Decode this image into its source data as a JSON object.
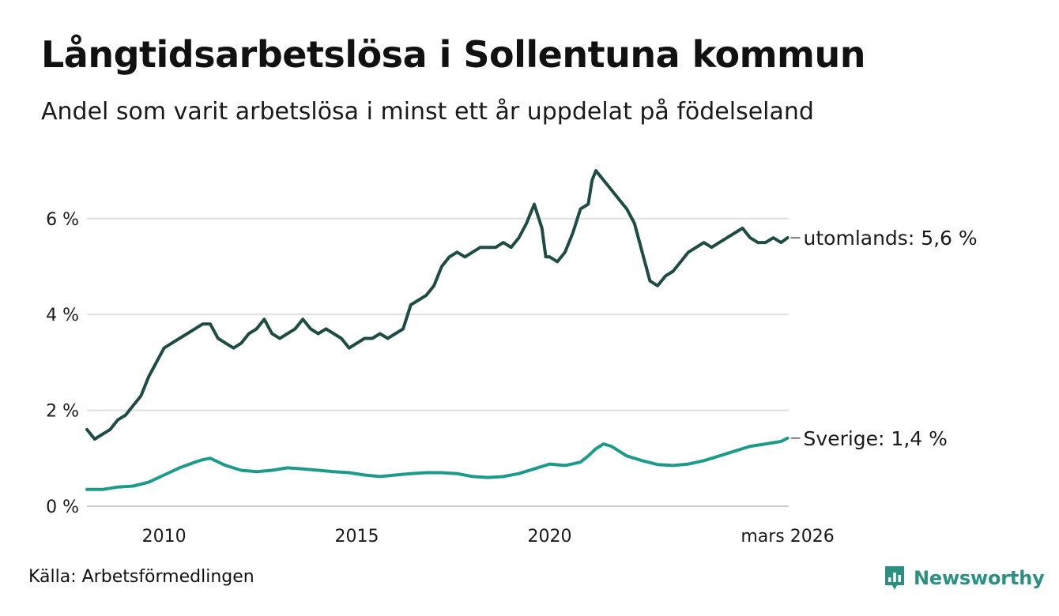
{
  "title": "Långtidsarbetslösa i Sollentuna kommun",
  "subtitle": "Andel som varit arbetslösa i minst ett år uppdelat på födelseland",
  "source": "Källa: Arbetsförmedlingen",
  "brand": {
    "name": "Newsworthy",
    "icon": "newsworthy-logo-icon",
    "color": "#2a9180"
  },
  "chart_data": {
    "type": "line",
    "title": "Långtidsarbetslösa i Sollentuna kommun",
    "xlabel": "",
    "ylabel": "",
    "x_range": [
      2008.0,
      2026.2
    ],
    "ylim": [
      0,
      7.1
    ],
    "y_ticks": [
      {
        "value": 0,
        "label": "0 %"
      },
      {
        "value": 2,
        "label": "2 %"
      },
      {
        "value": 4,
        "label": "4 %"
      },
      {
        "value": 6,
        "label": "6 %"
      }
    ],
    "x_ticks": [
      {
        "value": 2010,
        "label": "2010"
      },
      {
        "value": 2015,
        "label": "2015"
      },
      {
        "value": 2020,
        "label": "2020"
      },
      {
        "value": 2026.17,
        "label": "mars 2026"
      }
    ],
    "grid": true,
    "series": [
      {
        "name": "utomlands",
        "end_label": "utomlands: 5,6 %",
        "color": "#1f4b45",
        "x": [
          2008.0,
          2008.2,
          2008.4,
          2008.6,
          2008.8,
          2009.0,
          2009.2,
          2009.4,
          2009.6,
          2009.8,
          2010.0,
          2010.2,
          2010.4,
          2010.6,
          2010.8,
          2011.0,
          2011.2,
          2011.4,
          2011.6,
          2011.8,
          2012.0,
          2012.2,
          2012.4,
          2012.6,
          2012.8,
          2013.0,
          2013.2,
          2013.4,
          2013.6,
          2013.8,
          2014.0,
          2014.2,
          2014.4,
          2014.6,
          2014.8,
          2015.0,
          2015.2,
          2015.4,
          2015.6,
          2015.8,
          2016.0,
          2016.2,
          2016.4,
          2016.6,
          2016.8,
          2017.0,
          2017.2,
          2017.4,
          2017.6,
          2017.8,
          2018.0,
          2018.2,
          2018.4,
          2018.6,
          2018.8,
          2019.0,
          2019.2,
          2019.4,
          2019.6,
          2019.8,
          2019.9,
          2020.0,
          2020.2,
          2020.4,
          2020.6,
          2020.8,
          2021.0,
          2021.1,
          2021.2,
          2021.4,
          2021.6,
          2021.8,
          2022.0,
          2022.2,
          2022.4,
          2022.6,
          2022.8,
          2023.0,
          2023.2,
          2023.4,
          2023.6,
          2023.8,
          2024.0,
          2024.2,
          2024.4,
          2024.6,
          2024.8,
          2025.0,
          2025.2,
          2025.4,
          2025.6,
          2025.8,
          2026.0,
          2026.17
        ],
        "values": [
          1.6,
          1.4,
          1.5,
          1.6,
          1.8,
          1.9,
          2.1,
          2.3,
          2.7,
          3.0,
          3.3,
          3.4,
          3.5,
          3.6,
          3.7,
          3.8,
          3.8,
          3.5,
          3.4,
          3.3,
          3.4,
          3.6,
          3.7,
          3.9,
          3.6,
          3.5,
          3.6,
          3.7,
          3.9,
          3.7,
          3.6,
          3.7,
          3.6,
          3.5,
          3.3,
          3.4,
          3.5,
          3.5,
          3.6,
          3.5,
          3.6,
          3.7,
          4.2,
          4.3,
          4.4,
          4.6,
          5.0,
          5.2,
          5.3,
          5.2,
          5.3,
          5.4,
          5.4,
          5.4,
          5.5,
          5.4,
          5.6,
          5.9,
          6.3,
          5.8,
          5.2,
          5.2,
          5.1,
          5.3,
          5.7,
          6.2,
          6.3,
          6.8,
          7.0,
          6.8,
          6.6,
          6.4,
          6.2,
          5.9,
          5.3,
          4.7,
          4.6,
          4.8,
          4.9,
          5.1,
          5.3,
          5.4,
          5.5,
          5.4,
          5.5,
          5.6,
          5.7,
          5.8,
          5.6,
          5.5,
          5.5,
          5.6,
          5.5,
          5.6
        ]
      },
      {
        "name": "Sverige",
        "end_label": "Sverige: 1,4 %",
        "color": "#1e9a8a",
        "x": [
          2008.0,
          2008.4,
          2008.8,
          2009.2,
          2009.6,
          2010.0,
          2010.4,
          2010.8,
          2011.0,
          2011.2,
          2011.6,
          2012.0,
          2012.4,
          2012.8,
          2013.2,
          2013.6,
          2014.0,
          2014.4,
          2014.8,
          2015.2,
          2015.6,
          2016.0,
          2016.4,
          2016.8,
          2017.2,
          2017.6,
          2018.0,
          2018.4,
          2018.8,
          2019.2,
          2019.6,
          2020.0,
          2020.4,
          2020.8,
          2021.0,
          2021.2,
          2021.4,
          2021.6,
          2021.8,
          2022.0,
          2022.4,
          2022.8,
          2023.2,
          2023.6,
          2024.0,
          2024.4,
          2024.8,
          2025.2,
          2025.6,
          2026.0,
          2026.17
        ],
        "values": [
          0.35,
          0.35,
          0.4,
          0.42,
          0.5,
          0.65,
          0.8,
          0.92,
          0.97,
          1.0,
          0.85,
          0.75,
          0.72,
          0.75,
          0.8,
          0.78,
          0.75,
          0.72,
          0.7,
          0.65,
          0.62,
          0.65,
          0.68,
          0.7,
          0.7,
          0.68,
          0.62,
          0.6,
          0.62,
          0.68,
          0.78,
          0.88,
          0.85,
          0.92,
          1.05,
          1.2,
          1.3,
          1.25,
          1.15,
          1.05,
          0.95,
          0.87,
          0.85,
          0.88,
          0.95,
          1.05,
          1.15,
          1.25,
          1.3,
          1.35,
          1.42
        ]
      }
    ]
  }
}
